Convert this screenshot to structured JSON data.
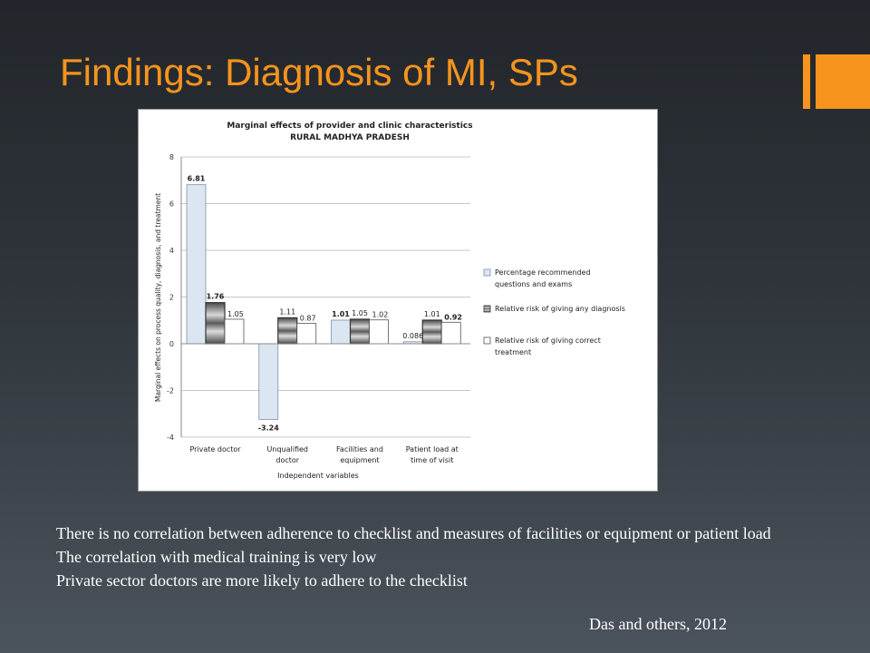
{
  "slide": {
    "title": "Findings: Diagnosis of MI, SPs",
    "bullets": [
      "There is no correlation between adherence to checklist and measures of  facilities or equipment or patient load",
      "The correlation with medical training is very low",
      "Private sector doctors are more likely to adhere to the checklist"
    ],
    "citation": "Das and others, 2012",
    "accent_color": "#f7941d"
  },
  "chart_data": {
    "type": "bar",
    "title": "Marginal effects of provider and clinic characteristics",
    "subtitle": "RURAL MADHYA PRADESH",
    "xlabel": "Independent variables",
    "ylabel": "Marginal effects on process quality, diagnosis, and treatment",
    "ylim": [
      -4,
      8
    ],
    "yticks": [
      -4,
      -2,
      0,
      2,
      4,
      6,
      8
    ],
    "grid": true,
    "legend_position": "right",
    "categories": [
      [
        "Private doctor"
      ],
      [
        "Unqualified",
        "doctor"
      ],
      [
        "Facilities and",
        "equipment"
      ],
      [
        "Patient load at",
        "time of visit"
      ]
    ],
    "series": [
      {
        "name": [
          "Percentage recommended",
          "questions and exams"
        ],
        "values": [
          6.81,
          -3.24,
          1.01,
          0.086
        ],
        "labels": [
          "6.81",
          "-3.24",
          "1.01",
          "0.086"
        ],
        "bold": [
          true,
          true,
          true,
          false
        ],
        "color": "#dce6f2"
      },
      {
        "name": [
          "Relative risk of giving any diagnosis"
        ],
        "values": [
          1.76,
          1.11,
          1.05,
          1.01
        ],
        "labels": [
          "1.76",
          "1.11",
          "1.05",
          "1.01"
        ],
        "bold": [
          true,
          false,
          false,
          false
        ],
        "color": "#7f7f7f"
      },
      {
        "name": [
          "Relative risk of giving correct",
          "treatment"
        ],
        "values": [
          1.05,
          0.87,
          1.02,
          0.92
        ],
        "labels": [
          "1.05",
          "0.87",
          "1.02",
          "0.92"
        ],
        "bold": [
          false,
          false,
          false,
          true
        ],
        "color": "#ffffff"
      }
    ]
  }
}
